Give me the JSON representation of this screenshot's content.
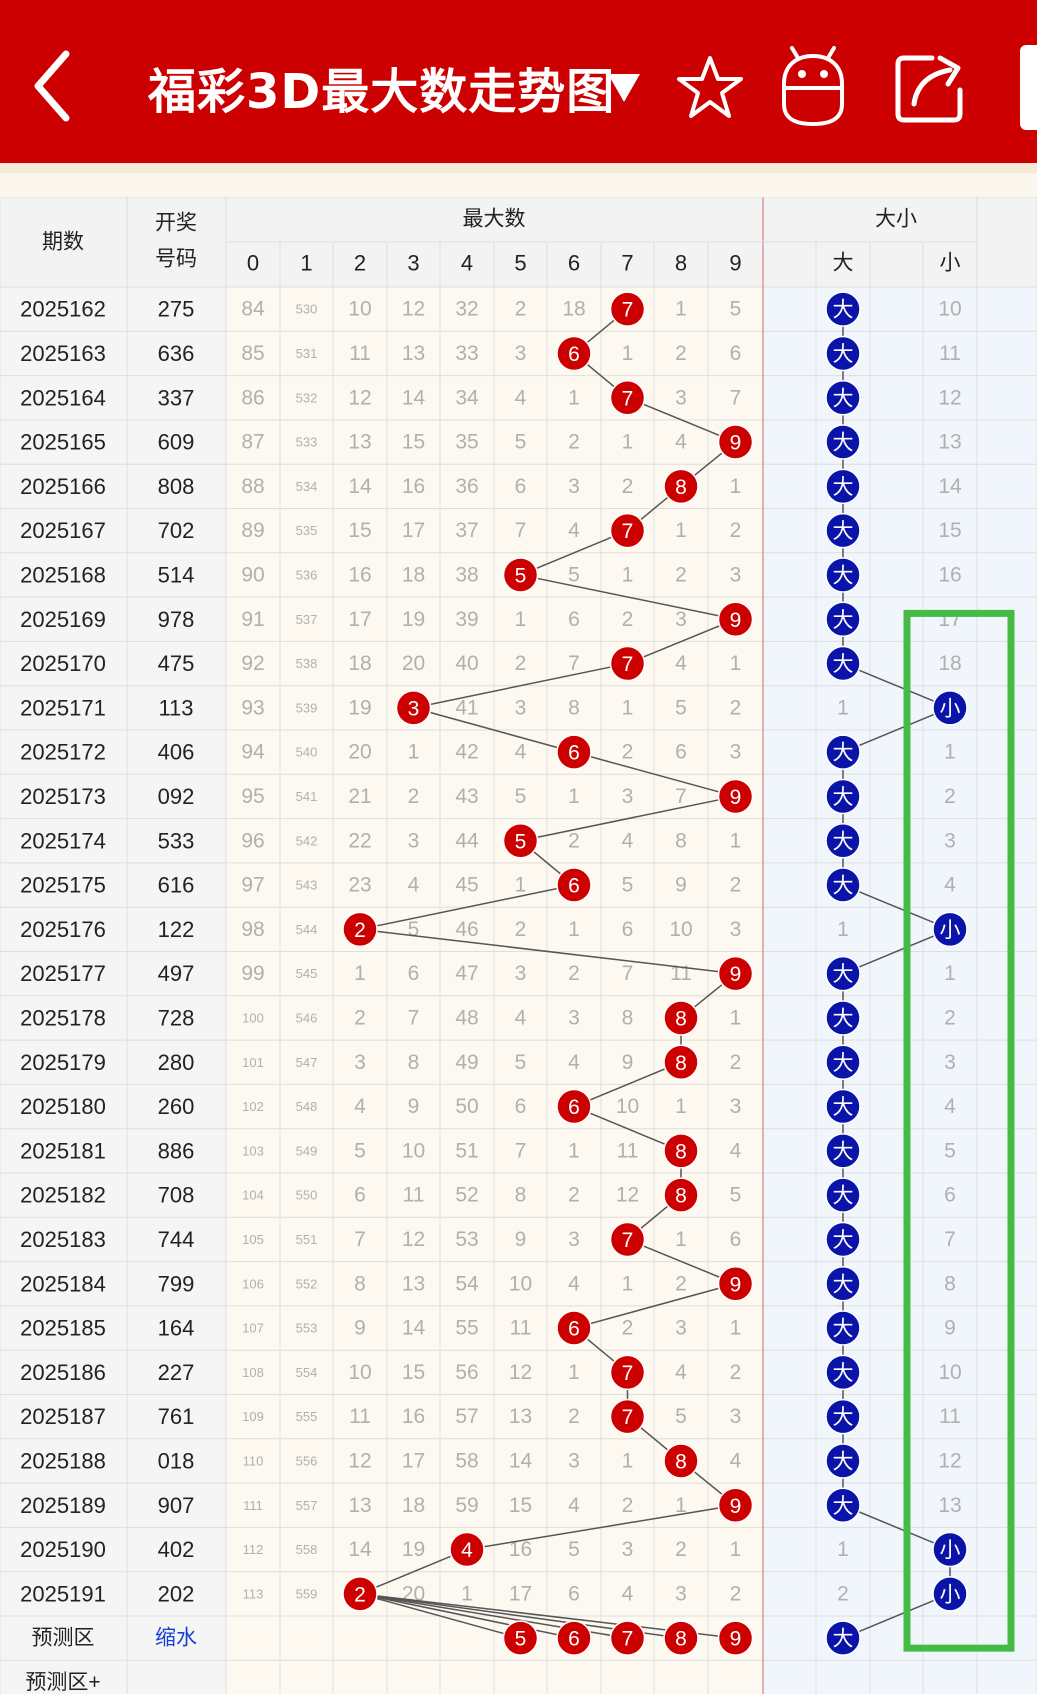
{
  "header": {
    "title": "福彩3D最大数走势图",
    "dropdown_icon": "triangle-down-icon",
    "icons": [
      "back-arrow-icon",
      "star-icon",
      "robot-icon",
      "share-icon"
    ]
  },
  "colors": {
    "header_bg": "#cc0000",
    "ball_red": "#cc0000",
    "ball_blue": "#0a14a8",
    "highlight": "#44bb44",
    "faded": "#b0b0b0"
  },
  "table": {
    "col_period": "期数",
    "col_number_line1": "开奖",
    "col_number_line2": "号码",
    "group_max": "最大数",
    "group_size": "大小",
    "digits": [
      "0",
      "1",
      "2",
      "3",
      "4",
      "5",
      "6",
      "7",
      "8",
      "9"
    ],
    "size_headers": [
      "大",
      "小"
    ],
    "big_label": "大",
    "small_label": "小",
    "rows": [
      {
        "period": "2025162",
        "number": "275",
        "miss": [
          "84",
          "530",
          "10",
          "12",
          "32",
          "2",
          "18",
          "",
          "1",
          "5"
        ],
        "max": 7,
        "size": "big",
        "big_miss": "",
        "small_miss": "10"
      },
      {
        "period": "2025163",
        "number": "636",
        "miss": [
          "85",
          "531",
          "11",
          "13",
          "33",
          "3",
          "",
          "1",
          "2",
          "6"
        ],
        "max": 6,
        "size": "big",
        "big_miss": "",
        "small_miss": "11"
      },
      {
        "period": "2025164",
        "number": "337",
        "miss": [
          "86",
          "532",
          "12",
          "14",
          "34",
          "4",
          "1",
          "",
          "3",
          "7"
        ],
        "max": 7,
        "size": "big",
        "big_miss": "",
        "small_miss": "12"
      },
      {
        "period": "2025165",
        "number": "609",
        "miss": [
          "87",
          "533",
          "13",
          "15",
          "35",
          "5",
          "2",
          "1",
          "4",
          ""
        ],
        "max": 9,
        "size": "big",
        "big_miss": "",
        "small_miss": "13"
      },
      {
        "period": "2025166",
        "number": "808",
        "miss": [
          "88",
          "534",
          "14",
          "16",
          "36",
          "6",
          "3",
          "2",
          "",
          "1"
        ],
        "max": 8,
        "size": "big",
        "big_miss": "",
        "small_miss": "14"
      },
      {
        "period": "2025167",
        "number": "702",
        "miss": [
          "89",
          "535",
          "15",
          "17",
          "37",
          "7",
          "4",
          "",
          "1",
          "2"
        ],
        "max": 7,
        "size": "big",
        "big_miss": "",
        "small_miss": "15"
      },
      {
        "period": "2025168",
        "number": "514",
        "miss": [
          "90",
          "536",
          "16",
          "18",
          "38",
          "",
          "5",
          "1",
          "2",
          "3"
        ],
        "max": 5,
        "size": "big",
        "big_miss": "",
        "small_miss": "16"
      },
      {
        "period": "2025169",
        "number": "978",
        "miss": [
          "91",
          "537",
          "17",
          "19",
          "39",
          "1",
          "6",
          "2",
          "3",
          ""
        ],
        "max": 9,
        "size": "big",
        "big_miss": "",
        "small_miss": "17"
      },
      {
        "period": "2025170",
        "number": "475",
        "miss": [
          "92",
          "538",
          "18",
          "20",
          "40",
          "2",
          "7",
          "",
          "4",
          "1"
        ],
        "max": 7,
        "size": "big",
        "big_miss": "",
        "small_miss": "18"
      },
      {
        "period": "2025171",
        "number": "113",
        "miss": [
          "93",
          "539",
          "19",
          "",
          "41",
          "3",
          "8",
          "1",
          "5",
          "2"
        ],
        "max": 3,
        "size": "small",
        "big_miss": "1",
        "small_miss": ""
      },
      {
        "period": "2025172",
        "number": "406",
        "miss": [
          "94",
          "540",
          "20",
          "1",
          "42",
          "4",
          "",
          "2",
          "6",
          "3"
        ],
        "max": 6,
        "size": "big",
        "big_miss": "",
        "small_miss": "1"
      },
      {
        "period": "2025173",
        "number": "092",
        "miss": [
          "95",
          "541",
          "21",
          "2",
          "43",
          "5",
          "1",
          "3",
          "7",
          ""
        ],
        "max": 9,
        "size": "big",
        "big_miss": "",
        "small_miss": "2"
      },
      {
        "period": "2025174",
        "number": "533",
        "miss": [
          "96",
          "542",
          "22",
          "3",
          "44",
          "",
          "2",
          "4",
          "8",
          "1"
        ],
        "max": 5,
        "size": "big",
        "big_miss": "",
        "small_miss": "3"
      },
      {
        "period": "2025175",
        "number": "616",
        "miss": [
          "97",
          "543",
          "23",
          "4",
          "45",
          "1",
          "",
          "5",
          "9",
          "2"
        ],
        "max": 6,
        "size": "big",
        "big_miss": "",
        "small_miss": "4"
      },
      {
        "period": "2025176",
        "number": "122",
        "miss": [
          "98",
          "544",
          "",
          "5",
          "46",
          "2",
          "1",
          "6",
          "10",
          "3"
        ],
        "max": 2,
        "size": "small",
        "big_miss": "1",
        "small_miss": ""
      },
      {
        "period": "2025177",
        "number": "497",
        "miss": [
          "99",
          "545",
          "1",
          "6",
          "47",
          "3",
          "2",
          "7",
          "11",
          ""
        ],
        "max": 9,
        "size": "big",
        "big_miss": "",
        "small_miss": "1"
      },
      {
        "period": "2025178",
        "number": "728",
        "miss": [
          "100",
          "546",
          "2",
          "7",
          "48",
          "4",
          "3",
          "8",
          "",
          "1"
        ],
        "max": 8,
        "size": "big",
        "big_miss": "",
        "small_miss": "2"
      },
      {
        "period": "2025179",
        "number": "280",
        "miss": [
          "101",
          "547",
          "3",
          "8",
          "49",
          "5",
          "4",
          "9",
          "",
          "2"
        ],
        "max": 8,
        "size": "big",
        "big_miss": "",
        "small_miss": "3"
      },
      {
        "period": "2025180",
        "number": "260",
        "miss": [
          "102",
          "548",
          "4",
          "9",
          "50",
          "6",
          "",
          "10",
          "1",
          "3"
        ],
        "max": 6,
        "size": "big",
        "big_miss": "",
        "small_miss": "4"
      },
      {
        "period": "2025181",
        "number": "886",
        "miss": [
          "103",
          "549",
          "5",
          "10",
          "51",
          "7",
          "1",
          "11",
          "",
          "4"
        ],
        "max": 8,
        "size": "big",
        "big_miss": "",
        "small_miss": "5"
      },
      {
        "period": "2025182",
        "number": "708",
        "miss": [
          "104",
          "550",
          "6",
          "11",
          "52",
          "8",
          "2",
          "12",
          "",
          "5"
        ],
        "max": 8,
        "size": "big",
        "big_miss": "",
        "small_miss": "6"
      },
      {
        "period": "2025183",
        "number": "744",
        "miss": [
          "105",
          "551",
          "7",
          "12",
          "53",
          "9",
          "3",
          "",
          "1",
          "6"
        ],
        "max": 7,
        "size": "big",
        "big_miss": "",
        "small_miss": "7"
      },
      {
        "period": "2025184",
        "number": "799",
        "miss": [
          "106",
          "552",
          "8",
          "13",
          "54",
          "10",
          "4",
          "1",
          "2",
          ""
        ],
        "max": 9,
        "size": "big",
        "big_miss": "",
        "small_miss": "8"
      },
      {
        "period": "2025185",
        "number": "164",
        "miss": [
          "107",
          "553",
          "9",
          "14",
          "55",
          "11",
          "",
          "2",
          "3",
          "1"
        ],
        "max": 6,
        "size": "big",
        "big_miss": "",
        "small_miss": "9"
      },
      {
        "period": "2025186",
        "number": "227",
        "miss": [
          "108",
          "554",
          "10",
          "15",
          "56",
          "12",
          "1",
          "",
          "4",
          "2"
        ],
        "max": 7,
        "size": "big",
        "big_miss": "",
        "small_miss": "10"
      },
      {
        "period": "2025187",
        "number": "761",
        "miss": [
          "109",
          "555",
          "11",
          "16",
          "57",
          "13",
          "2",
          "",
          "5",
          "3"
        ],
        "max": 7,
        "size": "big",
        "big_miss": "",
        "small_miss": "11"
      },
      {
        "period": "2025188",
        "number": "018",
        "miss": [
          "110",
          "556",
          "12",
          "17",
          "58",
          "14",
          "3",
          "1",
          "",
          "4"
        ],
        "max": 8,
        "size": "big",
        "big_miss": "",
        "small_miss": "12"
      },
      {
        "period": "2025189",
        "number": "907",
        "miss": [
          "111",
          "557",
          "13",
          "18",
          "59",
          "15",
          "4",
          "2",
          "1",
          ""
        ],
        "max": 9,
        "size": "big",
        "big_miss": "",
        "small_miss": "13"
      },
      {
        "period": "2025190",
        "number": "402",
        "miss": [
          "112",
          "558",
          "14",
          "19",
          "",
          "16",
          "5",
          "3",
          "2",
          "1"
        ],
        "max": 4,
        "size": "small",
        "big_miss": "1",
        "small_miss": ""
      },
      {
        "period": "2025191",
        "number": "202",
        "miss": [
          "113",
          "559",
          "",
          "20",
          "1",
          "17",
          "6",
          "4",
          "3",
          "2"
        ],
        "max": 2,
        "size": "small",
        "big_miss": "2",
        "small_miss": ""
      }
    ],
    "prediction": {
      "label": "预测区",
      "link": "缩水",
      "balls": [
        "5",
        "6",
        "7",
        "8",
        "9"
      ],
      "size": "大"
    },
    "prediction_plus": {
      "label": "预测区+"
    }
  }
}
